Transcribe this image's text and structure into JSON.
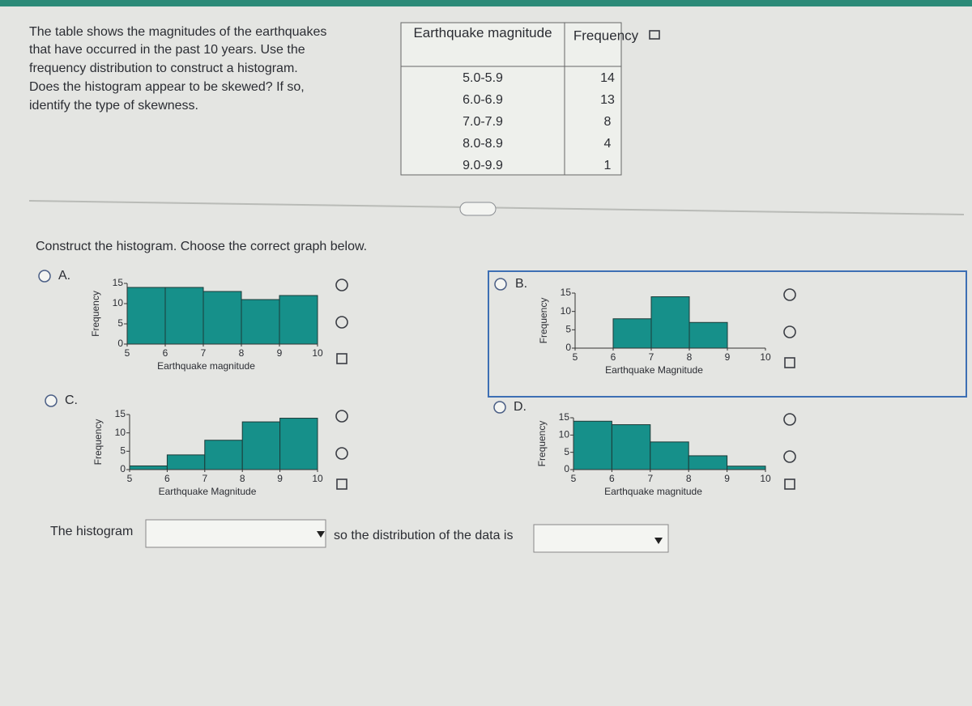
{
  "question": {
    "lines": [
      "The table shows the magnitudes of the earthquakes",
      "that have occurred in the past 10 years. Use the",
      "frequency distribution to construct a histogram.",
      "Does the histogram appear to be skewed? If so,",
      "identify the type of skewness."
    ]
  },
  "table": {
    "header": [
      "Earthquake magnitude",
      "Frequency"
    ],
    "rows": [
      [
        "5.0-5.9",
        14
      ],
      [
        "6.0-6.9",
        13
      ],
      [
        "7.0-7.9",
        8
      ],
      [
        "8.0-8.9",
        4
      ],
      [
        "9.0-9.9",
        1
      ]
    ]
  },
  "prompt": "Construct the histogram. Choose the correct graph below.",
  "options": [
    {
      "label": "A.",
      "chart": {
        "type": "histogram",
        "bins": [
          5,
          6,
          7,
          8,
          9,
          10
        ],
        "values": [
          14,
          14,
          13,
          11,
          12
        ],
        "color": "#16908a",
        "xlim": [
          5,
          10
        ],
        "ylim": [
          0,
          15
        ],
        "xticks": [
          5,
          6,
          7,
          8,
          9,
          10
        ],
        "yticks": [
          0,
          5,
          10,
          15
        ],
        "xlabel": "Earthquake magnitude",
        "ylabel": "Frequency"
      }
    },
    {
      "label": "B.",
      "chart": {
        "type": "histogram",
        "bins": [
          5,
          6,
          7,
          8,
          9,
          10
        ],
        "values": [
          0,
          8,
          14,
          7,
          0
        ],
        "color": "#16908a",
        "xlim": [
          5,
          10
        ],
        "ylim": [
          0,
          15
        ],
        "xticks": [
          5,
          6,
          7,
          8,
          9,
          10
        ],
        "yticks": [
          0,
          5,
          10,
          15
        ],
        "xlabel": "Earthquake Magnitude",
        "ylabel": "Frequency"
      }
    },
    {
      "label": "C.",
      "chart": {
        "type": "histogram",
        "bins": [
          5,
          6,
          7,
          8,
          9,
          10
        ],
        "values": [
          1,
          4,
          8,
          13,
          14
        ],
        "color": "#16908a",
        "xlim": [
          5,
          10
        ],
        "ylim": [
          0,
          15
        ],
        "xticks": [
          5,
          6,
          7,
          8,
          9,
          10
        ],
        "yticks": [
          0,
          5,
          10,
          15
        ],
        "xlabel": "Earthquake Magnitude",
        "ylabel": "Frequency"
      }
    },
    {
      "label": "D.",
      "chart": {
        "type": "histogram",
        "bins": [
          5,
          6,
          7,
          8,
          9,
          10
        ],
        "values": [
          14,
          13,
          8,
          4,
          1
        ],
        "color": "#16908a",
        "xlim": [
          5,
          10
        ],
        "ylim": [
          0,
          15
        ],
        "xticks": [
          5,
          6,
          7,
          8,
          9,
          10
        ],
        "yticks": [
          0,
          5,
          10,
          15
        ],
        "xlabel": "Earthquake magnitude",
        "ylabel": "Frequency"
      }
    }
  ],
  "answer": {
    "before": "The histogram",
    "middle": "so the distribution of the data is"
  }
}
